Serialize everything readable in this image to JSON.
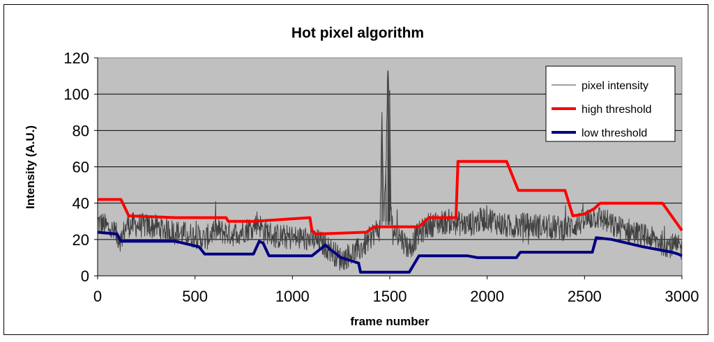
{
  "chart_data": {
    "type": "line",
    "title": "Hot pixel algorithm",
    "xlabel": "frame number",
    "ylabel": "Intensity (A.U.)",
    "xlim": [
      0,
      3000
    ],
    "ylim": [
      0,
      120
    ],
    "xticks": [
      0,
      500,
      1000,
      1500,
      2000,
      2500,
      3000
    ],
    "yticks": [
      0,
      20,
      40,
      60,
      80,
      100,
      120
    ],
    "grid": "horizontal",
    "plot_background": "#c0c0c0",
    "legend_position": "top-right",
    "series": [
      {
        "name": "pixel intensity",
        "color": "#404040",
        "noisy": true,
        "x": [
          0,
          60,
          120,
          150,
          200,
          300,
          400,
          500,
          550,
          600,
          700,
          800,
          820,
          850,
          880,
          900,
          1000,
          1100,
          1150,
          1200,
          1250,
          1300,
          1340,
          1380,
          1420,
          1450,
          1460,
          1470,
          1480,
          1490,
          1495,
          1500,
          1505,
          1510,
          1520,
          1550,
          1600,
          1640,
          1700,
          1800,
          1900,
          2000,
          2100,
          2200,
          2300,
          2400,
          2500,
          2550,
          2600,
          2650,
          2700,
          2800,
          2900,
          3000
        ],
        "y": [
          30,
          26,
          20,
          28,
          28,
          27,
          24,
          22,
          20,
          25,
          23,
          27,
          30,
          25,
          24,
          22,
          21,
          20,
          18,
          14,
          9,
          12,
          14,
          18,
          24,
          26,
          90,
          30,
          60,
          113,
          100,
          102,
          40,
          28,
          25,
          22,
          15,
          22,
          28,
          30,
          28,
          32,
          27,
          28,
          27,
          26,
          30,
          33,
          31,
          27,
          26,
          22,
          18,
          15
        ]
      },
      {
        "name": "high threshold",
        "color": "#ff0000",
        "x": [
          0,
          120,
          160,
          400,
          660,
          670,
          800,
          1090,
          1100,
          1120,
          1380,
          1420,
          1650,
          1700,
          1840,
          1850,
          2100,
          2160,
          2400,
          2440,
          2500,
          2550,
          2580,
          2900,
          2980,
          3000
        ],
        "y": [
          42,
          42,
          33,
          32,
          32,
          30,
          30,
          32,
          25,
          23,
          24,
          27,
          27,
          32,
          32,
          63,
          63,
          47,
          47,
          33,
          34,
          37,
          40,
          40,
          28,
          25
        ]
      },
      {
        "name": "low threshold",
        "color": "#000080",
        "x": [
          0,
          100,
          120,
          400,
          520,
          550,
          800,
          830,
          850,
          880,
          1100,
          1170,
          1190,
          1250,
          1340,
          1350,
          1600,
          1650,
          1900,
          1950,
          2150,
          2170,
          2200,
          2540,
          2560,
          2640,
          2800,
          2950,
          2980,
          3000
        ],
        "y": [
          24,
          23,
          19,
          19,
          16,
          12,
          12,
          19,
          18,
          11,
          11,
          17,
          15,
          10,
          7,
          2,
          2,
          11,
          11,
          10,
          10,
          13,
          13,
          13,
          21,
          20,
          16,
          13,
          12,
          11
        ]
      }
    ]
  }
}
